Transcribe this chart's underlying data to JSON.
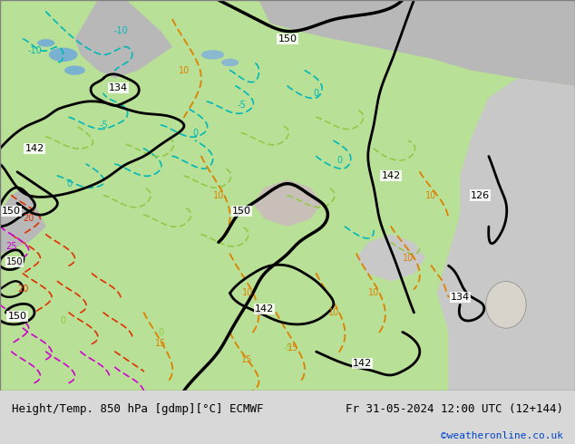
{
  "title_left": "Height/Temp. 850 hPa [gdmp][°C] ECMWF",
  "title_right": "Fr 31-05-2024 12:00 UTC (12+144)",
  "credit": "©weatheronline.co.uk",
  "bg_color": "#d8d8d8",
  "land_green": "#b8e096",
  "gray_terrain": "#b8b8b8",
  "light_gray": "#c8c8c8",
  "sea_gray": "#d0d0d0",
  "white_area": "#f0f0f0",
  "black": "#000000",
  "cyan": "#00b8b8",
  "teal": "#00a890",
  "green": "#50a000",
  "light_green_contour": "#90c840",
  "orange": "#e08000",
  "red": "#e03000",
  "magenta": "#d000d0",
  "pink": "#ff40a0",
  "credit_color": "#0044cc",
  "fig_width": 6.34,
  "fig_height": 4.9,
  "dpi": 100
}
